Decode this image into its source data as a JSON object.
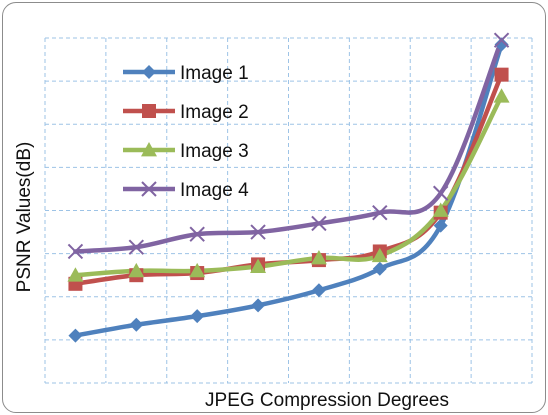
{
  "chart_data": {
    "type": "line",
    "title": "",
    "xlabel": "JPEG Compression Degrees",
    "ylabel": "PSNR Values(dB)",
    "x": [
      1,
      2,
      3,
      4,
      5,
      6,
      7,
      8
    ],
    "ylim": [
      0,
      8
    ],
    "grid": true,
    "legend_position": "top-left",
    "series": [
      {
        "name": "Image 1",
        "color": "#4f81bd",
        "marker": "diamond",
        "values": [
          1.1,
          1.35,
          1.55,
          1.8,
          2.15,
          2.65,
          3.65,
          7.85
        ]
      },
      {
        "name": "Image 2",
        "color": "#c0504d",
        "marker": "square",
        "values": [
          2.3,
          2.5,
          2.55,
          2.75,
          2.85,
          3.05,
          3.95,
          7.15
        ]
      },
      {
        "name": "Image 3",
        "color": "#9bbb59",
        "marker": "triangle",
        "values": [
          2.5,
          2.6,
          2.6,
          2.7,
          2.9,
          2.95,
          4.0,
          6.65
        ]
      },
      {
        "name": "Image 4",
        "color": "#8064a2",
        "marker": "x",
        "values": [
          3.05,
          3.15,
          3.45,
          3.5,
          3.7,
          3.95,
          4.4,
          7.95
        ]
      }
    ]
  }
}
